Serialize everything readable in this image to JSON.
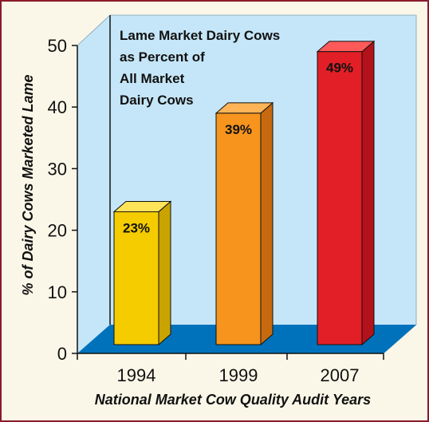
{
  "chart_data": {
    "type": "bar",
    "categories": [
      "1994",
      "1999",
      "2007"
    ],
    "values": [
      23,
      39,
      49
    ],
    "data_labels": [
      "23%",
      "39%",
      "49%"
    ],
    "bar_colors": [
      "#f5cc00",
      "#f7941d",
      "#e21f26"
    ],
    "ylabel": "% of Dairy Cows Marketed Lame",
    "xlabel": "National Market Cow Quality Audit Years",
    "ylim": [
      0,
      50
    ],
    "yticks": [
      0,
      10,
      20,
      30,
      40,
      50
    ],
    "annotation": [
      "Lame Market Dairy Cows",
      "as Percent of",
      "All Market",
      "Dairy Cows"
    ],
    "grid": false,
    "legend": "none"
  },
  "colors": {
    "background": "#fbf7e8",
    "frame": "#8b1a2b",
    "back_wall": "#c5e6f8",
    "floor": "#0072bc"
  }
}
